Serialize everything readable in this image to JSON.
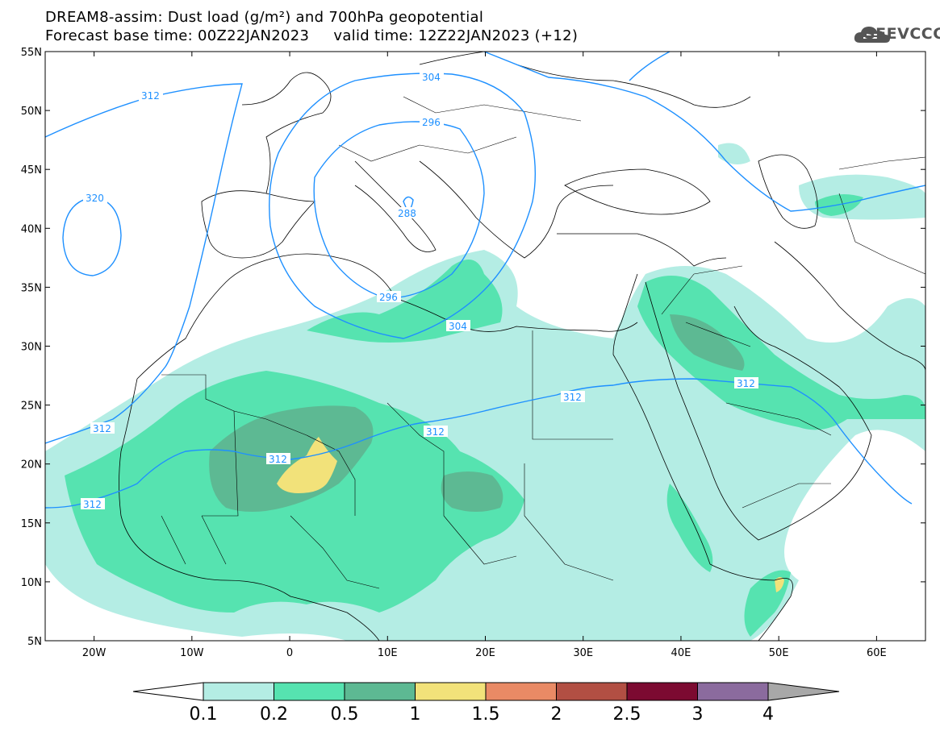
{
  "header": {
    "line1": "DREAM8-assim: Dust load (g/m²) and 700hPa geopotential",
    "line2": "Forecast base time: 00Z22JAN2023     valid time: 12Z22JAN2023 (+12)"
  },
  "logo": {
    "text": "SEEVCCC"
  },
  "map": {
    "lon_range": [
      -25,
      65
    ],
    "lat_range": [
      5,
      55
    ],
    "lat_ticks": [
      "5N",
      "10N",
      "15N",
      "20N",
      "25N",
      "30N",
      "35N",
      "40N",
      "45N",
      "50N",
      "55N"
    ],
    "lon_ticks": [
      "20W",
      "10W",
      "0",
      "10E",
      "20E",
      "30E",
      "40E",
      "50E",
      "60E"
    ]
  },
  "contour_labels": [
    "312",
    "304",
    "296",
    "288",
    "320",
    "296",
    "304",
    "312",
    "312",
    "312",
    "312",
    "312",
    "312"
  ],
  "colorbar": {
    "levels": [
      "0.1",
      "0.2",
      "0.5",
      "1",
      "1.5",
      "2",
      "2.5",
      "3",
      "4"
    ],
    "colors": [
      "#b4ede4",
      "#56e3b0",
      "#5db993",
      "#f2e27a",
      "#e98a65",
      "#b24f43",
      "#7c0a31",
      "#8b6b9e",
      "#a8a8a8"
    ]
  },
  "colors": {
    "contour": "#1e90ff",
    "dust_01": "#b4ede4",
    "dust_02": "#56e3b0",
    "dust_05": "#5db993",
    "dust_1": "#f2e27a"
  }
}
